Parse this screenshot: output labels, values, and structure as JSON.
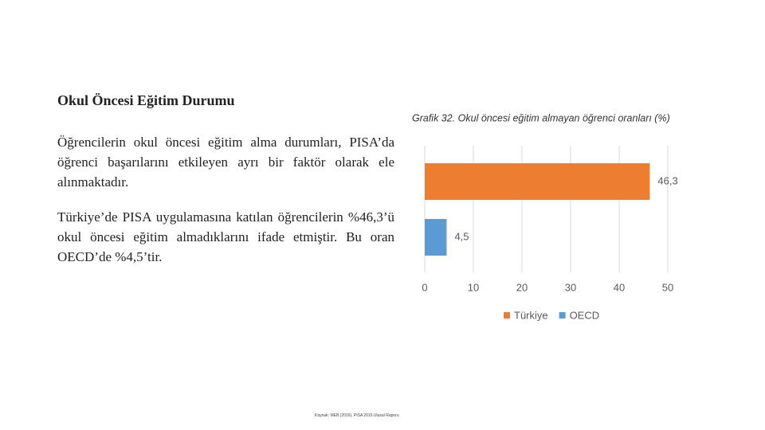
{
  "slide": {
    "title": "Okul Öncesi Eğitim Durumu",
    "paragraphs": [
      "Öğrencilerin okul öncesi eğitim alma durumları, PISA’da öğrenci başarılarını etkileyen ayrı bir faktör olarak ele alınmaktadır.",
      "Türkiye’de PISA uygulamasına katılan öğrencilerin %46,3’ü okul öncesi eğitim almadıklarını ifade etmiştir. Bu oran OECD’de %4,5’tir."
    ],
    "footer": "Kaynak: MEB (2016). PISA 2015 Ulusal Raporu"
  },
  "chart_data": {
    "type": "hbar",
    "title": "Grafik 32. Okul öncesi eğitim almayan öğrenci oranları (%)",
    "categories": [
      null,
      null
    ],
    "series": [
      {
        "name": "Türkiye",
        "color": "#ed7d31",
        "values": [
          46.3,
          null
        ],
        "value_labels": [
          "46,3",
          null
        ]
      },
      {
        "name": "OECD",
        "color": "#5b9bd5",
        "values": [
          null,
          4.5
        ],
        "value_labels": [
          null,
          "4,5"
        ]
      }
    ],
    "xlim": [
      0,
      50
    ],
    "xticks": [
      0,
      10,
      20,
      30,
      40,
      50
    ],
    "grid": true,
    "legend": "bottom"
  }
}
